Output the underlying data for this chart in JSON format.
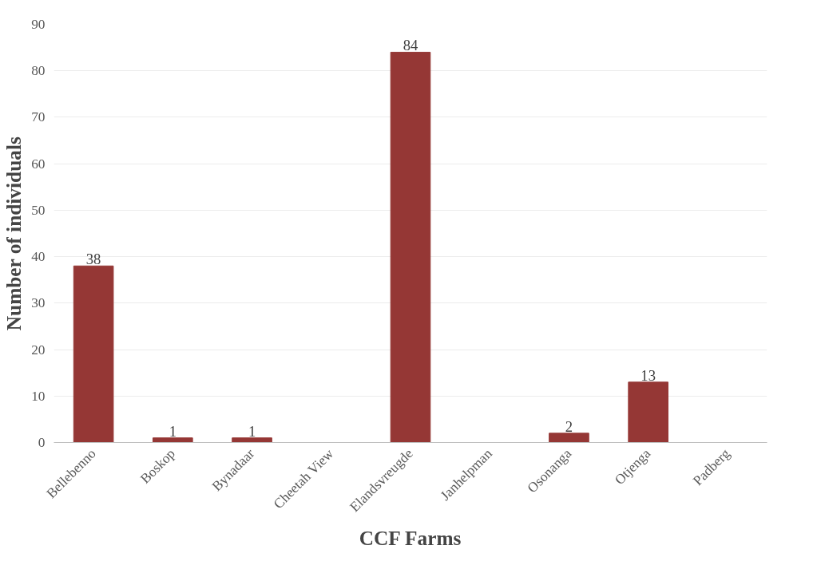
{
  "chart_data": {
    "type": "bar",
    "xlabel": "CCF Farms",
    "ylabel": "Number of individuals",
    "categories": [
      "Bellebenno",
      "Boskop",
      "Bynadaar",
      "Cheetah View",
      "Elandsvreugde",
      "Janhelpman",
      "Osonanga",
      "Otjenga",
      "Padberg"
    ],
    "values": [
      38,
      1,
      1,
      0,
      84,
      0,
      2,
      13,
      0
    ],
    "value_labels": [
      "38",
      "1",
      "1",
      null,
      "84",
      null,
      "2",
      "13",
      null
    ],
    "color": "#953735",
    "ylim": [
      0,
      90
    ],
    "yticks": [
      0,
      10,
      20,
      30,
      40,
      50,
      60,
      70,
      80,
      90
    ],
    "grid": "y"
  }
}
